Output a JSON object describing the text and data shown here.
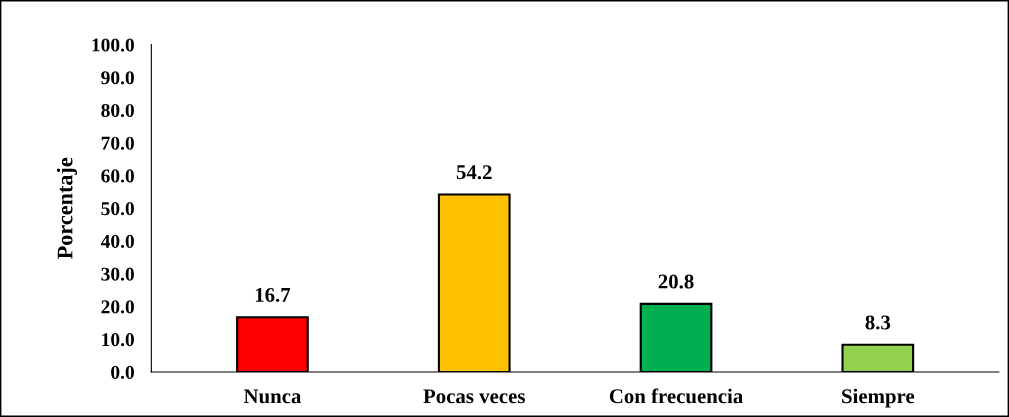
{
  "chart_data": {
    "type": "bar",
    "ylabel": "Porcentaje",
    "categories": [
      "Nunca",
      "Pocas veces",
      "Con frecuencia",
      "Siempre"
    ],
    "values": [
      16.7,
      54.2,
      20.8,
      8.3
    ],
    "colors": [
      "#ff0000",
      "#ffc000",
      "#00b050",
      "#92d050"
    ],
    "ylim": [
      0,
      100
    ],
    "yticks": [
      {
        "value": 0,
        "label": "0.0"
      },
      {
        "value": 10,
        "label": "10.0"
      },
      {
        "value": 20,
        "label": "20.0"
      },
      {
        "value": 30,
        "label": "30.0"
      },
      {
        "value": 40,
        "label": "40.0"
      },
      {
        "value": 50,
        "label": "50.0"
      },
      {
        "value": 60,
        "label": "60.0"
      },
      {
        "value": 70,
        "label": "70.0"
      },
      {
        "value": 80,
        "label": "80.0"
      },
      {
        "value": 90,
        "label": "90.0"
      },
      {
        "value": 100,
        "label": "100.0"
      }
    ],
    "data_labels": true,
    "grid": false,
    "legend": false
  }
}
